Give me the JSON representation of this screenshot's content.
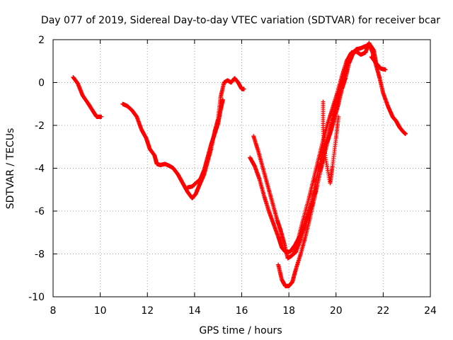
{
  "chart_data": {
    "type": "scatter",
    "title": "Day 077 of 2019, Sidereal Day-to-day VTEC variation (SDTVAR) for receiver bcar",
    "xlabel": "GPS time / hours",
    "ylabel": "SDTVAR / TECUs",
    "xlim": [
      8,
      24
    ],
    "ylim": [
      -10,
      2
    ],
    "xticks": [
      "8",
      "10",
      "12",
      "14",
      "16",
      "18",
      "20",
      "22",
      "24"
    ],
    "yticks": [
      "-10",
      "-8",
      "-6",
      "-4",
      "-2",
      "0",
      "2"
    ],
    "grid": true,
    "marker": "+",
    "color": "#ff0000",
    "series": [
      {
        "name": "",
        "segments": [
          [
            [
              8.85,
              0.25
            ],
            [
              9.05,
              -0.05
            ],
            [
              9.25,
              -0.6
            ],
            [
              9.5,
              -1.0
            ],
            [
              9.7,
              -1.35
            ],
            [
              9.85,
              -1.6
            ],
            [
              10.05,
              -1.6
            ]
          ],
          [
            [
              10.95,
              -1.0
            ],
            [
              11.15,
              -1.1
            ],
            [
              11.35,
              -1.3
            ],
            [
              11.55,
              -1.6
            ],
            [
              11.75,
              -2.2
            ],
            [
              11.95,
              -2.6
            ],
            [
              12.1,
              -3.1
            ],
            [
              12.3,
              -3.4
            ],
            [
              12.4,
              -3.8
            ],
            [
              12.55,
              -3.85
            ],
            [
              12.75,
              -3.8
            ],
            [
              12.95,
              -3.9
            ],
            [
              13.1,
              -4.0
            ],
            [
              13.3,
              -4.3
            ],
            [
              13.5,
              -4.7
            ],
            [
              13.7,
              -5.1
            ],
            [
              13.9,
              -5.4
            ],
            [
              14.05,
              -5.2
            ],
            [
              14.2,
              -4.8
            ],
            [
              14.4,
              -4.3
            ],
            [
              14.55,
              -3.7
            ],
            [
              14.7,
              -3.1
            ],
            [
              14.85,
              -2.3
            ],
            [
              15.0,
              -1.7
            ],
            [
              15.1,
              -0.7
            ],
            [
              15.25,
              0.0
            ],
            [
              15.4,
              0.1
            ],
            [
              15.55,
              0.0
            ],
            [
              15.7,
              0.2
            ],
            [
              15.85,
              0.0
            ],
            [
              16.0,
              -0.3
            ],
            [
              16.1,
              -0.3
            ]
          ],
          [
            [
              13.7,
              -4.9
            ],
            [
              13.9,
              -4.85
            ],
            [
              14.05,
              -4.7
            ],
            [
              14.25,
              -4.5
            ],
            [
              14.4,
              -4.1
            ],
            [
              14.55,
              -3.5
            ],
            [
              14.7,
              -2.9
            ],
            [
              14.85,
              -2.4
            ],
            [
              15.0,
              -1.9
            ],
            [
              15.1,
              -1.3
            ],
            [
              15.2,
              -0.8
            ]
          ],
          [
            [
              16.35,
              -3.5
            ],
            [
              16.55,
              -3.9
            ],
            [
              16.75,
              -4.5
            ],
            [
              16.95,
              -5.3
            ],
            [
              17.15,
              -6.0
            ],
            [
              17.35,
              -6.6
            ],
            [
              17.55,
              -7.2
            ],
            [
              17.7,
              -7.7
            ],
            [
              17.85,
              -7.9
            ],
            [
              18.05,
              -7.9
            ],
            [
              18.25,
              -7.6
            ],
            [
              18.5,
              -7.1
            ],
            [
              18.75,
              -6.3
            ],
            [
              18.95,
              -5.6
            ],
            [
              19.15,
              -4.6
            ],
            [
              19.35,
              -3.6
            ],
            [
              19.5,
              -3.0
            ],
            [
              19.65,
              -2.7
            ],
            [
              19.8,
              -2.2
            ],
            [
              19.95,
              -1.6
            ],
            [
              20.1,
              -1.0
            ],
            [
              20.25,
              -0.3
            ],
            [
              20.4,
              0.2
            ],
            [
              20.55,
              0.9
            ],
            [
              20.7,
              1.3
            ],
            [
              20.85,
              1.55
            ],
            [
              21.05,
              1.6
            ],
            [
              21.25,
              1.7
            ],
            [
              21.45,
              1.75
            ],
            [
              21.6,
              1.5
            ],
            [
              21.7,
              0.9
            ]
          ],
          [
            [
              16.5,
              -2.5
            ],
            [
              16.7,
              -3.2
            ],
            [
              16.9,
              -4.0
            ],
            [
              17.1,
              -4.8
            ],
            [
              17.3,
              -5.6
            ],
            [
              17.5,
              -6.4
            ],
            [
              17.65,
              -6.9
            ],
            [
              17.8,
              -7.5
            ],
            [
              17.95,
              -8.2
            ],
            [
              18.1,
              -8.1
            ],
            [
              18.3,
              -7.9
            ],
            [
              18.5,
              -7.3
            ],
            [
              18.75,
              -6.5
            ],
            [
              19.0,
              -5.7
            ],
            [
              19.2,
              -4.8
            ],
            [
              19.4,
              -3.8
            ],
            [
              19.55,
              -3.0
            ],
            [
              19.75,
              -2.2
            ],
            [
              19.9,
              -1.5
            ],
            [
              20.05,
              -0.8
            ],
            [
              20.2,
              -0.2
            ],
            [
              20.35,
              0.4
            ],
            [
              20.5,
              1.0
            ],
            [
              20.7,
              1.4
            ],
            [
              20.85,
              1.5
            ]
          ],
          [
            [
              17.55,
              -8.5
            ],
            [
              17.7,
              -9.2
            ],
            [
              17.85,
              -9.5
            ],
            [
              18.0,
              -9.5
            ],
            [
              18.15,
              -9.3
            ],
            [
              18.3,
              -8.7
            ],
            [
              18.5,
              -8.0
            ],
            [
              18.7,
              -7.2
            ],
            [
              18.9,
              -6.3
            ],
            [
              19.1,
              -5.3
            ],
            [
              19.3,
              -4.3
            ],
            [
              19.5,
              -3.4
            ],
            [
              19.7,
              -2.5
            ],
            [
              19.9,
              -1.6
            ],
            [
              20.1,
              -0.7
            ],
            [
              20.3,
              0.2
            ],
            [
              20.45,
              0.6
            ]
          ],
          [
            [
              18.2,
              -8.0
            ],
            [
              18.4,
              -7.3
            ],
            [
              18.6,
              -6.4
            ],
            [
              18.85,
              -5.4
            ],
            [
              19.05,
              -4.5
            ],
            [
              19.25,
              -3.6
            ],
            [
              19.45,
              -2.7
            ],
            [
              19.65,
              -1.9
            ],
            [
              19.85,
              -1.2
            ],
            [
              20.05,
              -0.5
            ],
            [
              20.25,
              0.3
            ],
            [
              20.45,
              1.0
            ],
            [
              20.65,
              1.4
            ],
            [
              20.85,
              1.45
            ],
            [
              21.05,
              1.3
            ],
            [
              21.25,
              1.4
            ],
            [
              21.4,
              1.85
            ],
            [
              21.55,
              1.4
            ],
            [
              21.7,
              0.8
            ],
            [
              21.85,
              0.2
            ],
            [
              22.0,
              -0.5
            ],
            [
              22.2,
              -1.1
            ],
            [
              22.4,
              -1.6
            ],
            [
              22.55,
              -1.8
            ],
            [
              22.7,
              -2.1
            ],
            [
              22.85,
              -2.3
            ],
            [
              22.95,
              -2.4
            ]
          ],
          [
            [
              19.45,
              -0.9
            ],
            [
              19.45,
              -2.2
            ],
            [
              19.55,
              -3.5
            ],
            [
              19.75,
              -4.7
            ],
            [
              19.85,
              -3.9
            ],
            [
              20.0,
              -2.6
            ],
            [
              20.1,
              -1.6
            ]
          ],
          [
            [
              21.5,
              1.2
            ],
            [
              21.7,
              0.9
            ],
            [
              21.9,
              0.65
            ],
            [
              22.1,
              0.6
            ]
          ]
        ]
      }
    ]
  }
}
